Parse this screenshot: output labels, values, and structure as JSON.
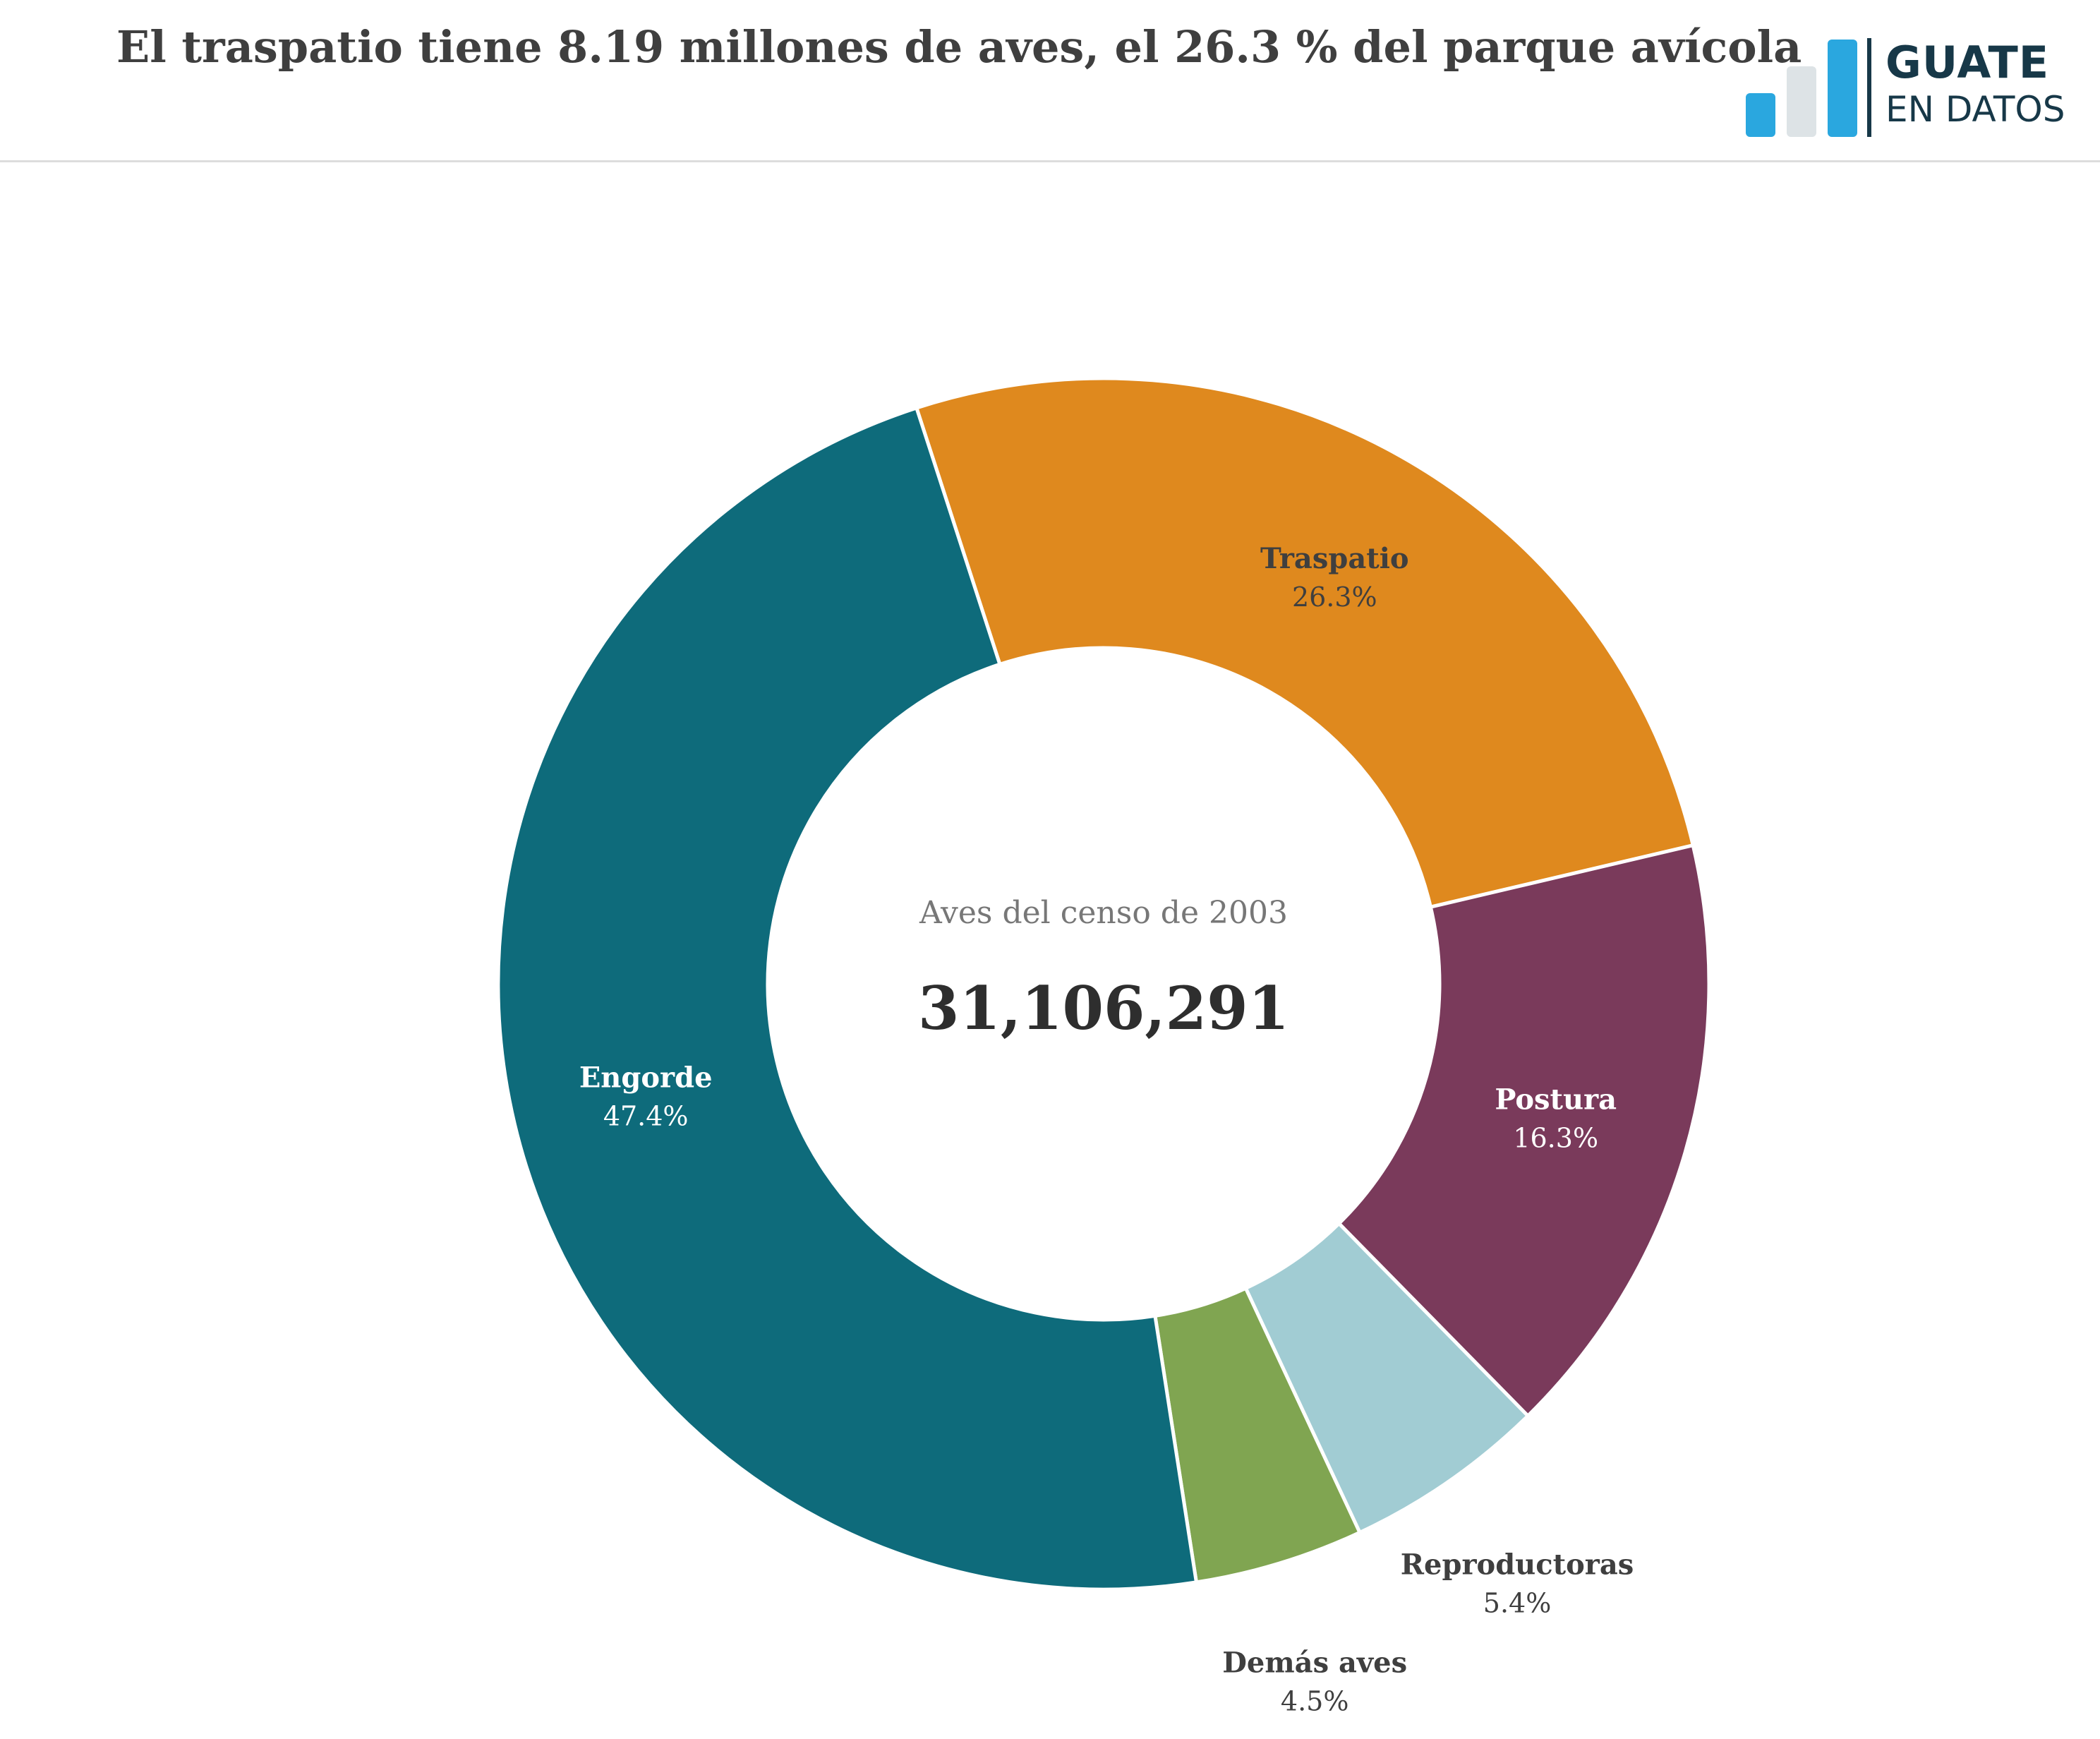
{
  "header": {
    "title": "El traspatio tiene 8.19 millones de aves, el 26.3 % del parque avícola"
  },
  "logo": {
    "line1": "GUATE",
    "line2": "EN DATOS",
    "bar_colors": [
      "#2aa7df",
      "#dde3e6",
      "#2aa7df"
    ],
    "divider_color": "#173848"
  },
  "chart_data": {
    "type": "pie",
    "variant": "donut",
    "center_label": "Aves del censo de 2003",
    "center_value": "31,106,291",
    "slices": [
      {
        "name": "Traspatio",
        "value": 26.3,
        "label": "26.3%",
        "color": "#df891e"
      },
      {
        "name": "Postura",
        "value": 16.3,
        "label": "16.3%",
        "color": "#7a3a5b"
      },
      {
        "name": "Reproductoras",
        "value": 5.4,
        "label": "5.4%",
        "color": "#a1ccd3"
      },
      {
        "name": "Demás aves",
        "value": 4.5,
        "label": "4.5%",
        "color": "#80a551"
      },
      {
        "name": "Engorde",
        "value": 47.4,
        "label": "47.4%",
        "color": "#0e6b7b"
      }
    ]
  }
}
